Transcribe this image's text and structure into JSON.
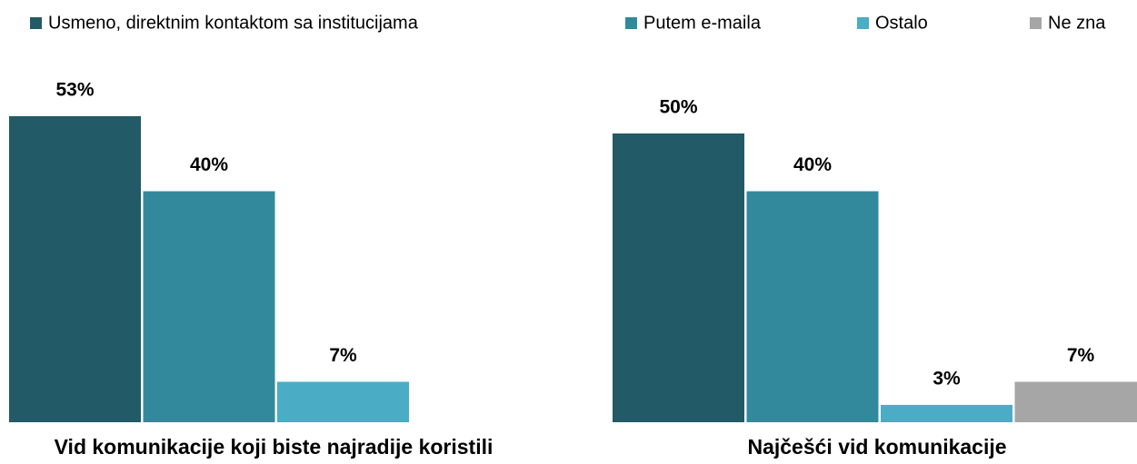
{
  "chart_data": {
    "type": "bar",
    "categories": [
      "Vid komunikacije koji biste najradije koristili",
      "Najčešći vid komunikacije"
    ],
    "series": [
      {
        "name": "Usmeno, direktnim kontaktom sa institucijama",
        "color": "#235a67",
        "values": [
          53,
          50
        ],
        "value_labels": [
          "53%",
          "50%"
        ]
      },
      {
        "name": "Putem e-maila",
        "color": "#33899c",
        "values": [
          40,
          40
        ],
        "value_labels": [
          "40%",
          "40%"
        ]
      },
      {
        "name": "Ostalo",
        "color": "#4aacc5",
        "values": [
          7,
          3
        ],
        "value_labels": [
          "7%",
          "3%"
        ]
      },
      {
        "name": "Ne zna",
        "color": "#a6a6a6",
        "values": [
          null,
          7
        ],
        "value_labels": [
          null,
          "7%"
        ]
      }
    ]
  }
}
